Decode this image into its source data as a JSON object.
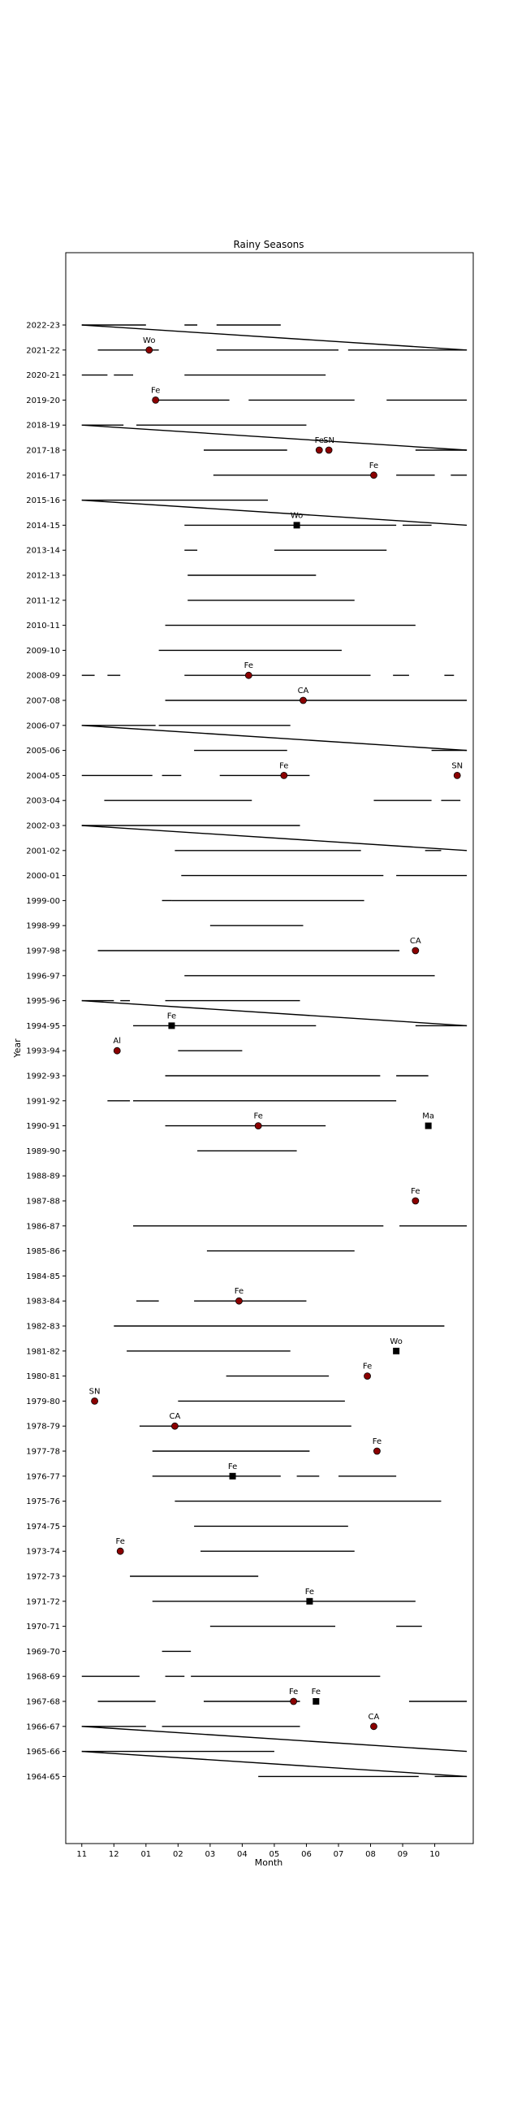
{
  "chart_data": {
    "type": "timeline",
    "title": "Rainy Seasons",
    "xlabel": "Month",
    "ylabel": "Year",
    "xlim": [
      10.5,
      23.2
    ],
    "x_ticks": [
      11,
      12,
      13,
      14,
      15,
      16,
      17,
      18,
      19,
      20,
      21,
      22
    ],
    "x_tick_labels": [
      "11",
      "12",
      "01",
      "02",
      "03",
      "04",
      "05",
      "06",
      "07",
      "08",
      "09",
      "10"
    ],
    "years": [
      "2022-23",
      "2021-22",
      "2020-21",
      "2019-20",
      "2018-19",
      "2017-18",
      "2016-17",
      "2015-16",
      "2014-15",
      "2013-14",
      "2012-13",
      "2011-12",
      "2010-11",
      "2009-10",
      "2008-09",
      "2007-08",
      "2006-07",
      "2005-06",
      "2004-05",
      "2003-04",
      "2002-03",
      "2001-02",
      "2000-01",
      "1999-00",
      "1998-99",
      "1997-98",
      "1996-97",
      "1995-96",
      "1994-95",
      "1993-94",
      "1992-93",
      "1991-92",
      "1990-91",
      "1989-90",
      "1988-89",
      "1987-88",
      "1986-87",
      "1985-86",
      "1984-85",
      "1983-84",
      "1982-83",
      "1981-82",
      "1980-81",
      "1979-80",
      "1978-79",
      "1977-78",
      "1976-77",
      "1975-76",
      "1974-75",
      "1973-74",
      "1972-73",
      "1971-72",
      "1970-71",
      "1969-70",
      "1968-69",
      "1967-68",
      "1966-67",
      "1965-66",
      "1964-65"
    ],
    "segments": [
      {
        "year": "2022-23",
        "start": 11.0,
        "end": 13.0
      },
      {
        "year": "2022-23",
        "start": 14.2,
        "end": 14.6
      },
      {
        "year": "2022-23",
        "start": 15.2,
        "end": 17.2
      },
      {
        "year": "2021-22",
        "start": 11.5,
        "end": 13.4
      },
      {
        "year": "2021-22",
        "start": 15.2,
        "end": 19.0
      },
      {
        "year": "2021-22",
        "start": 19.3,
        "end": 23.0
      },
      {
        "year": "2020-21",
        "start": 11.0,
        "end": 11.8
      },
      {
        "year": "2020-21",
        "start": 12.0,
        "end": 12.6
      },
      {
        "year": "2020-21",
        "start": 14.2,
        "end": 18.6
      },
      {
        "year": "2019-20",
        "start": 13.3,
        "end": 15.6
      },
      {
        "year": "2019-20",
        "start": 16.2,
        "end": 19.5
      },
      {
        "year": "2019-20",
        "start": 20.5,
        "end": 23.0
      },
      {
        "year": "2018-19",
        "start": 11.0,
        "end": 12.3
      },
      {
        "year": "2018-19",
        "start": 12.7,
        "end": 18.0
      },
      {
        "year": "2017-18",
        "start": 14.8,
        "end": 17.4
      },
      {
        "year": "2017-18",
        "start": 21.4,
        "end": 23.0
      },
      {
        "year": "2016-17",
        "start": 15.1,
        "end": 20.0
      },
      {
        "year": "2016-17",
        "start": 20.8,
        "end": 22.0
      },
      {
        "year": "2016-17",
        "start": 22.5,
        "end": 23.0
      },
      {
        "year": "2015-16",
        "start": 11.0,
        "end": 16.8
      },
      {
        "year": "2014-15",
        "start": 14.2,
        "end": 20.8
      },
      {
        "year": "2014-15",
        "start": 21.0,
        "end": 21.9
      },
      {
        "year": "2013-14",
        "start": 14.2,
        "end": 14.6
      },
      {
        "year": "2013-14",
        "start": 17.0,
        "end": 20.5
      },
      {
        "year": "2012-13",
        "start": 14.3,
        "end": 18.3
      },
      {
        "year": "2011-12",
        "start": 14.3,
        "end": 19.5
      },
      {
        "year": "2010-11",
        "start": 13.6,
        "end": 21.4
      },
      {
        "year": "2009-10",
        "start": 13.4,
        "end": 19.1
      },
      {
        "year": "2008-09",
        "start": 11.0,
        "end": 11.4
      },
      {
        "year": "2008-09",
        "start": 11.8,
        "end": 12.2
      },
      {
        "year": "2008-09",
        "start": 14.2,
        "end": 20.0
      },
      {
        "year": "2008-09",
        "start": 20.7,
        "end": 21.2
      },
      {
        "year": "2008-09",
        "start": 22.3,
        "end": 22.6
      },
      {
        "year": "2007-08",
        "start": 13.6,
        "end": 23.0
      },
      {
        "year": "2006-07",
        "start": 11.0,
        "end": 13.3
      },
      {
        "year": "2006-07",
        "start": 13.4,
        "end": 17.5
      },
      {
        "year": "2005-06",
        "start": 14.5,
        "end": 17.4
      },
      {
        "year": "2005-06",
        "start": 21.9,
        "end": 23.0
      },
      {
        "year": "2004-05",
        "start": 11.0,
        "end": 13.2
      },
      {
        "year": "2004-05",
        "start": 13.5,
        "end": 14.1
      },
      {
        "year": "2004-05",
        "start": 15.3,
        "end": 18.1
      },
      {
        "year": "2003-04",
        "start": 11.7,
        "end": 16.3
      },
      {
        "year": "2003-04",
        "start": 20.1,
        "end": 21.9
      },
      {
        "year": "2003-04",
        "start": 22.2,
        "end": 22.8
      },
      {
        "year": "2002-03",
        "start": 11.0,
        "end": 17.8
      },
      {
        "year": "2001-02",
        "start": 13.9,
        "end": 19.7
      },
      {
        "year": "2001-02",
        "start": 21.7,
        "end": 22.2
      },
      {
        "year": "2000-01",
        "start": 14.1,
        "end": 20.4
      },
      {
        "year": "2000-01",
        "start": 20.8,
        "end": 23.0
      },
      {
        "year": "1999-00",
        "start": 13.5,
        "end": 13.8
      },
      {
        "year": "1999-00",
        "start": 13.8,
        "end": 19.8
      },
      {
        "year": "1998-99",
        "start": 15.0,
        "end": 17.9
      },
      {
        "year": "1997-98",
        "start": 11.5,
        "end": 20.9
      },
      {
        "year": "1996-97",
        "start": 14.2,
        "end": 22.0
      },
      {
        "year": "1995-96",
        "start": 11.0,
        "end": 12.0
      },
      {
        "year": "1995-96",
        "start": 12.2,
        "end": 12.5
      },
      {
        "year": "1995-96",
        "start": 13.6,
        "end": 17.8
      },
      {
        "year": "1994-95",
        "start": 12.6,
        "end": 18.3
      },
      {
        "year": "1994-95",
        "start": 21.4,
        "end": 23.0
      },
      {
        "year": "1993-94",
        "start": 14.0,
        "end": 16.0
      },
      {
        "year": "1992-93",
        "start": 13.6,
        "end": 20.3
      },
      {
        "year": "1992-93",
        "start": 20.8,
        "end": 21.8
      },
      {
        "year": "1991-92",
        "start": 11.8,
        "end": 12.5
      },
      {
        "year": "1991-92",
        "start": 12.6,
        "end": 20.8
      },
      {
        "year": "1990-91",
        "start": 13.6,
        "end": 18.6
      },
      {
        "year": "1989-90",
        "start": 14.6,
        "end": 17.7
      },
      {
        "year": "1986-87",
        "start": 12.6,
        "end": 20.4
      },
      {
        "year": "1986-87",
        "start": 20.9,
        "end": 23.0
      },
      {
        "year": "1985-86",
        "start": 14.9,
        "end": 19.5
      },
      {
        "year": "1983-84",
        "start": 12.7,
        "end": 13.4
      },
      {
        "year": "1983-84",
        "start": 14.5,
        "end": 18.0
      },
      {
        "year": "1982-83",
        "start": 12.0,
        "end": 22.3
      },
      {
        "year": "1981-82",
        "start": 12.4,
        "end": 17.5
      },
      {
        "year": "1980-81",
        "start": 15.5,
        "end": 18.7
      },
      {
        "year": "1979-80",
        "start": 14.0,
        "end": 19.2
      },
      {
        "year": "1978-79",
        "start": 12.8,
        "end": 19.4
      },
      {
        "year": "1977-78",
        "start": 13.2,
        "end": 18.1
      },
      {
        "year": "1976-77",
        "start": 13.2,
        "end": 17.2
      },
      {
        "year": "1976-77",
        "start": 17.7,
        "end": 18.4
      },
      {
        "year": "1976-77",
        "start": 19.0,
        "end": 20.8
      },
      {
        "year": "1975-76",
        "start": 13.9,
        "end": 22.2
      },
      {
        "year": "1974-75",
        "start": 14.5,
        "end": 19.3
      },
      {
        "year": "1973-74",
        "start": 14.7,
        "end": 19.5
      },
      {
        "year": "1972-73",
        "start": 12.5,
        "end": 16.5
      },
      {
        "year": "1971-72",
        "start": 13.2,
        "end": 21.4
      },
      {
        "year": "1970-71",
        "start": 15.0,
        "end": 18.9
      },
      {
        "year": "1970-71",
        "start": 20.8,
        "end": 21.6
      },
      {
        "year": "1969-70",
        "start": 13.5,
        "end": 14.4
      },
      {
        "year": "1968-69",
        "start": 11.0,
        "end": 12.8
      },
      {
        "year": "1968-69",
        "start": 13.6,
        "end": 14.2
      },
      {
        "year": "1968-69",
        "start": 14.4,
        "end": 20.3
      },
      {
        "year": "1967-68",
        "start": 11.5,
        "end": 13.3
      },
      {
        "year": "1967-68",
        "start": 14.8,
        "end": 17.8
      },
      {
        "year": "1967-68",
        "start": 21.2,
        "end": 23.0
      },
      {
        "year": "1966-67",
        "start": 11.0,
        "end": 13.0
      },
      {
        "year": "1966-67",
        "start": 13.5,
        "end": 17.8
      },
      {
        "year": "1965-66",
        "start": 11.0,
        "end": 17.0
      },
      {
        "year": "1964-65",
        "start": 16.5,
        "end": 21.5
      },
      {
        "year": "1964-65",
        "start": 22.0,
        "end": 23.0
      }
    ],
    "diagonals": [
      {
        "from_year": "2022-23",
        "to_year": "2021-22",
        "x_start": 11.0,
        "x_end": 23.0
      },
      {
        "from_year": "2018-19",
        "to_year": "2017-18",
        "x_start": 11.0,
        "x_end": 23.0
      },
      {
        "from_year": "2015-16",
        "to_year": "2014-15",
        "x_start": 11.0,
        "x_end": 23.0
      },
      {
        "from_year": "2006-07",
        "to_year": "2005-06",
        "x_start": 11.0,
        "x_end": 23.0
      },
      {
        "from_year": "2002-03",
        "to_year": "2001-02",
        "x_start": 11.0,
        "x_end": 23.0
      },
      {
        "from_year": "1995-96",
        "to_year": "1994-95",
        "x_start": 11.0,
        "x_end": 23.0
      },
      {
        "from_year": "1966-67",
        "to_year": "1965-66",
        "x_start": 11.0,
        "x_end": 23.0
      },
      {
        "from_year": "1965-66",
        "to_year": "1964-65",
        "x_start": 11.0,
        "x_end": 23.0
      }
    ],
    "markers": [
      {
        "year": "2021-22",
        "x": 13.1,
        "shape": "circle",
        "label": "Wo"
      },
      {
        "year": "2019-20",
        "x": 13.3,
        "shape": "circle",
        "label": "Fe"
      },
      {
        "year": "2017-18",
        "x": 18.4,
        "shape": "circle",
        "label": "Fe"
      },
      {
        "year": "2017-18",
        "x": 18.7,
        "shape": "circle",
        "label": "SN"
      },
      {
        "year": "2016-17",
        "x": 20.1,
        "shape": "circle",
        "label": "Fe"
      },
      {
        "year": "2014-15",
        "x": 17.7,
        "shape": "square",
        "label": "Wo"
      },
      {
        "year": "2008-09",
        "x": 16.2,
        "shape": "circle",
        "label": "Fe"
      },
      {
        "year": "2007-08",
        "x": 17.9,
        "shape": "circle",
        "label": "CA"
      },
      {
        "year": "2004-05",
        "x": 17.3,
        "shape": "circle",
        "label": "Fe"
      },
      {
        "year": "2004-05",
        "x": 22.7,
        "shape": "circle",
        "label": "SN"
      },
      {
        "year": "1997-98",
        "x": 21.4,
        "shape": "circle",
        "label": "CA"
      },
      {
        "year": "1994-95",
        "x": 13.8,
        "shape": "square",
        "label": "Fe"
      },
      {
        "year": "1993-94",
        "x": 12.1,
        "shape": "circle",
        "label": "Al"
      },
      {
        "year": "1990-91",
        "x": 16.5,
        "shape": "circle",
        "label": "Fe"
      },
      {
        "year": "1990-91",
        "x": 21.8,
        "shape": "square",
        "label": "Ma"
      },
      {
        "year": "1987-88",
        "x": 21.4,
        "shape": "circle",
        "label": "Fe"
      },
      {
        "year": "1983-84",
        "x": 15.9,
        "shape": "circle",
        "label": "Fe"
      },
      {
        "year": "1981-82",
        "x": 20.8,
        "shape": "square",
        "label": "Wo"
      },
      {
        "year": "1980-81",
        "x": 19.9,
        "shape": "circle",
        "label": "Fe"
      },
      {
        "year": "1979-80",
        "x": 11.4,
        "shape": "circle",
        "label": "SN"
      },
      {
        "year": "1978-79",
        "x": 13.9,
        "shape": "circle",
        "label": "CA"
      },
      {
        "year": "1977-78",
        "x": 20.2,
        "shape": "circle",
        "label": "Fe"
      },
      {
        "year": "1976-77",
        "x": 15.7,
        "shape": "square",
        "label": "Fe"
      },
      {
        "year": "1973-74",
        "x": 12.2,
        "shape": "circle",
        "label": "Fe"
      },
      {
        "year": "1971-72",
        "x": 18.1,
        "shape": "square",
        "label": "Fe"
      },
      {
        "year": "1967-68",
        "x": 17.6,
        "shape": "circle",
        "label": "Fe"
      },
      {
        "year": "1967-68",
        "x": 18.3,
        "shape": "square",
        "label": "Fe"
      },
      {
        "year": "1966-67",
        "x": 20.1,
        "shape": "circle",
        "label": "CA"
      }
    ],
    "colors": {
      "line": "#000000",
      "circle_fill": "#8b0000",
      "square_fill": "#000000"
    },
    "grid": false,
    "legend": "none"
  }
}
